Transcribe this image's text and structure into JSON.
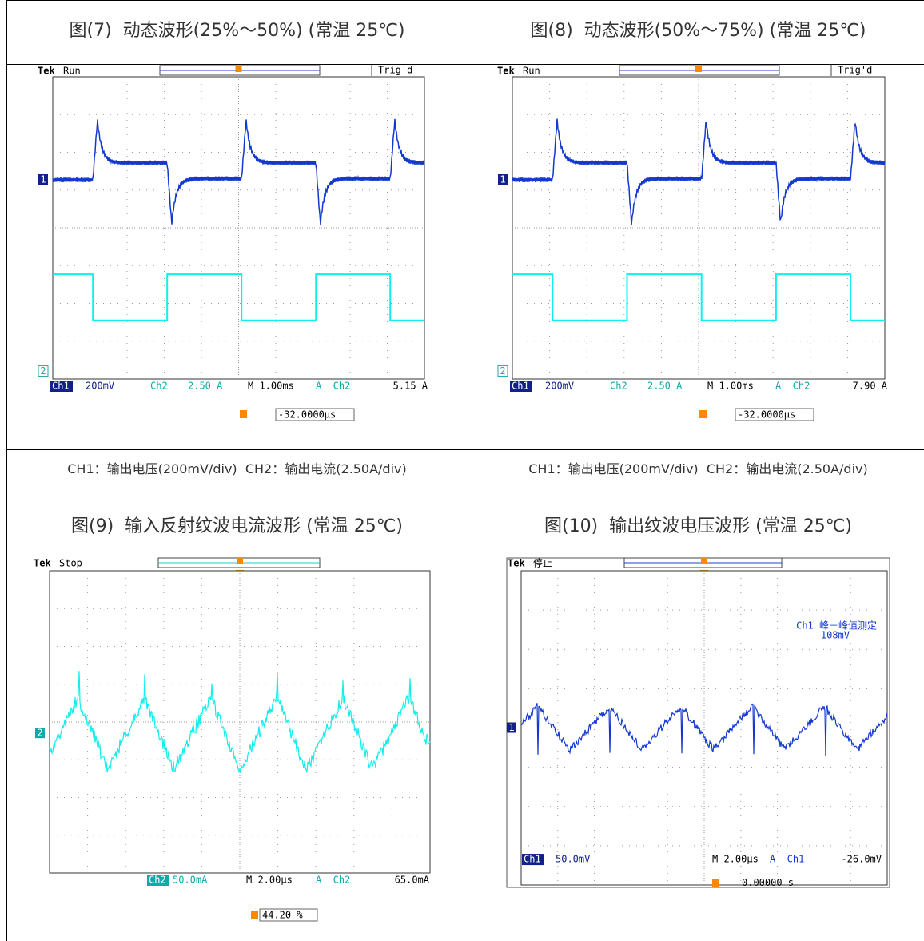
{
  "figures": [
    {
      "caption": "图(7)  动态波形(25%～50%) (常温 25℃)",
      "scope": {
        "brand": "Tek",
        "state": "Run",
        "trigger_status": "Trig'd",
        "ch1_marker": "1",
        "ch2_marker": "2",
        "ch1_label": "Ch1",
        "ch1_scale": "200mV",
        "ch2_label": "Ch2",
        "ch2_scale": "2.50 A",
        "timebase": "M 1.00ms",
        "trigger_source": "A  Ch2",
        "trigger_level": "5.15 A",
        "trigger_offset": "-32.0000µs"
      },
      "note": "CH1：输出电压(200mV/div)  CH2：输出电流(2.50A/div)"
    },
    {
      "caption": "图(8)  动态波形(50%～75%) (常温 25℃)",
      "scope": {
        "brand": "Tek",
        "state": "Run",
        "trigger_status": "Trig'd",
        "ch1_marker": "1",
        "ch2_marker": "2",
        "ch1_label": "Ch1",
        "ch1_scale": "200mV",
        "ch2_label": "Ch2",
        "ch2_scale": "2.50 A",
        "timebase": "M 1.00ms",
        "trigger_source": "A  Ch2",
        "trigger_level": "7.90 A",
        "trigger_offset": "-32.0000µs"
      },
      "note": "CH1：输出电压(200mV/div)  CH2：输出电流(2.50A/div)"
    },
    {
      "caption": "图(9)  输入反射纹波电流波形 (常温 25℃)",
      "scope": {
        "brand": "Tek",
        "state": "Stop",
        "ch2_marker": "2",
        "ch2_label": "Ch2",
        "ch2_scale": "50.0mA",
        "timebase": "M 2.00µs",
        "trigger_source": "A  Ch2",
        "trigger_level": "65.0mA",
        "trigger_position": "44.20 %"
      }
    },
    {
      "caption": "图(10)  输出纹波电压波形 (常温 25℃)",
      "scope": {
        "brand": "Tek",
        "state": "停止",
        "ch1_marker": "1",
        "measure_title": "Ch1 峰－峰值测定",
        "measure_value": "108mV",
        "ch1_label": "Ch1",
        "ch1_scale": "50.0mV",
        "timebase": "M 2.00µs",
        "trigger_source": "A  Ch1",
        "trigger_level": "-26.0mV",
        "trigger_offset": "0.00000 s"
      }
    }
  ]
}
